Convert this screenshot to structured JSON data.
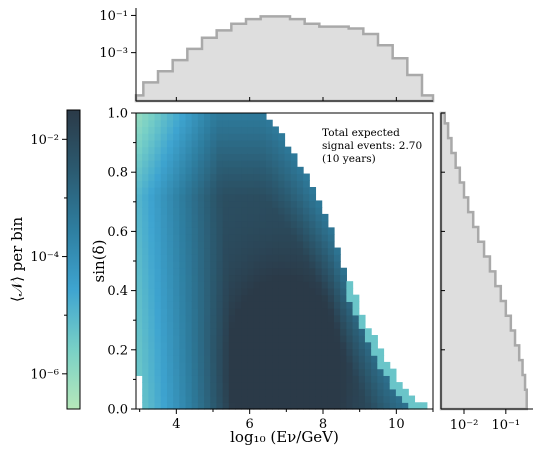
{
  "chart_data": {
    "type": "heatmap",
    "title": "",
    "xlabel": "log₁₀ (Eν/GeV)",
    "ylabel": "sin(δ)",
    "colorbar_label": "⟨𝒩⟩ per bin",
    "xlim": [
      2.9,
      11.0
    ],
    "ylim": [
      0.0,
      1.0
    ],
    "x_ticks": [
      4,
      6,
      8,
      10
    ],
    "x_tick_labels": [
      "4",
      "6",
      "8",
      "10"
    ],
    "y_ticks": [
      0.0,
      0.2,
      0.4,
      0.6,
      0.8,
      1.0
    ],
    "y_tick_labels": [
      "0.0",
      "0.2",
      "0.4",
      "0.6",
      "0.8",
      "1.0"
    ],
    "colorbar_range_log10": [
      -6.6,
      -1.5
    ],
    "colorbar_ticks_log10": [
      -6,
      -4,
      -2
    ],
    "colorbar_tick_labels": [
      "10⁻⁶",
      "10⁻⁴",
      "10⁻²"
    ],
    "colorscale": [
      "#b6e8ba",
      "#78d0c6",
      "#3ea4d0",
      "#2e7ea0",
      "#2b5a70",
      "#2b3a48"
    ],
    "grid": false,
    "annotation": [
      "Total expected",
      "signal events: 2.70",
      "(10 years)"
    ],
    "upper_edge_sin_delta": {
      "x": [
        6.3,
        6.6,
        7.0,
        7.4,
        7.8,
        8.2,
        8.5,
        8.8,
        9.2,
        9.6,
        10.0,
        10.4,
        10.8
      ],
      "y": [
        1.0,
        0.97,
        0.9,
        0.82,
        0.72,
        0.62,
        0.5,
        0.4,
        0.29,
        0.19,
        0.11,
        0.05,
        0.01
      ]
    },
    "hot_core": {
      "x": 6.9,
      "y": 0.1
    },
    "top_marginal": {
      "xlabel": "log₁₀ (Eν/GeV)",
      "y_scale": "log",
      "y_ticks_log10": [
        -3,
        -1
      ],
      "y_tick_labels": [
        "10⁻³",
        "10⁻¹"
      ],
      "x": [
        2.9,
        3.3,
        3.7,
        4.1,
        4.5,
        4.9,
        5.3,
        5.7,
        6.1,
        6.5,
        6.9,
        7.3,
        7.7,
        8.1,
        8.5,
        8.9,
        9.3,
        9.7,
        10.1,
        10.5,
        10.9
      ],
      "log10_y": [
        -5.3,
        -4.6,
        -4.0,
        -3.4,
        -2.8,
        -2.2,
        -1.8,
        -1.45,
        -1.2,
        -1.05,
        -1.05,
        -1.2,
        -1.45,
        -1.6,
        -1.6,
        -1.7,
        -2.0,
        -2.6,
        -3.3,
        -4.2,
        -5.3
      ]
    },
    "right_marginal": {
      "ylabel": "sin(δ)",
      "x_scale": "log",
      "x_ticks_log10": [
        -2,
        -1
      ],
      "x_tick_labels": [
        "10⁻²",
        "10⁻¹"
      ],
      "y": [
        0.99,
        0.94,
        0.89,
        0.84,
        0.79,
        0.74,
        0.69,
        0.64,
        0.59,
        0.54,
        0.49,
        0.44,
        0.39,
        0.34,
        0.29,
        0.24,
        0.19,
        0.14,
        0.09,
        0.04
      ],
      "log10_x": [
        -2.46,
        -2.38,
        -2.3,
        -2.2,
        -2.1,
        -2.0,
        -1.9,
        -1.78,
        -1.66,
        -1.52,
        -1.38,
        -1.25,
        -1.12,
        -1.0,
        -0.88,
        -0.78,
        -0.68,
        -0.6,
        -0.54,
        -0.5
      ]
    }
  }
}
